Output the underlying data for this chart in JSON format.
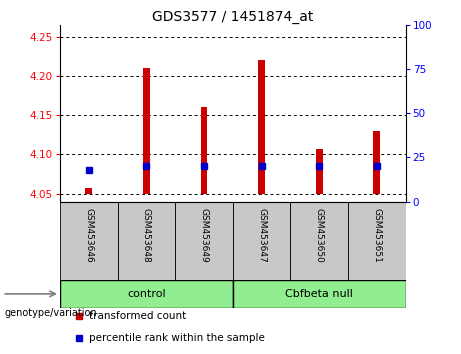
{
  "title": "GDS3577 / 1451874_at",
  "samples": [
    "GSM453646",
    "GSM453648",
    "GSM453649",
    "GSM453647",
    "GSM453650",
    "GSM453651"
  ],
  "groups": [
    "control",
    "control",
    "control",
    "Cbfbeta null",
    "Cbfbeta null",
    "Cbfbeta null"
  ],
  "group_labels": [
    "control",
    "Cbfbeta null"
  ],
  "transformed_counts": [
    4.057,
    4.21,
    4.16,
    4.22,
    4.107,
    4.13
  ],
  "percentile_ranks": [
    18,
    20,
    20,
    20,
    20,
    20
  ],
  "ylim_left": [
    4.04,
    4.265
  ],
  "ylim_right": [
    0,
    100
  ],
  "yticks_left": [
    4.05,
    4.1,
    4.15,
    4.2,
    4.25
  ],
  "yticks_right": [
    0,
    25,
    50,
    75,
    100
  ],
  "bar_color": "#cc0000",
  "dot_color": "#0000cc",
  "bar_bottom": 4.05,
  "group_bg_color": "#c8c8c8",
  "group_box_color": "#90ee90"
}
